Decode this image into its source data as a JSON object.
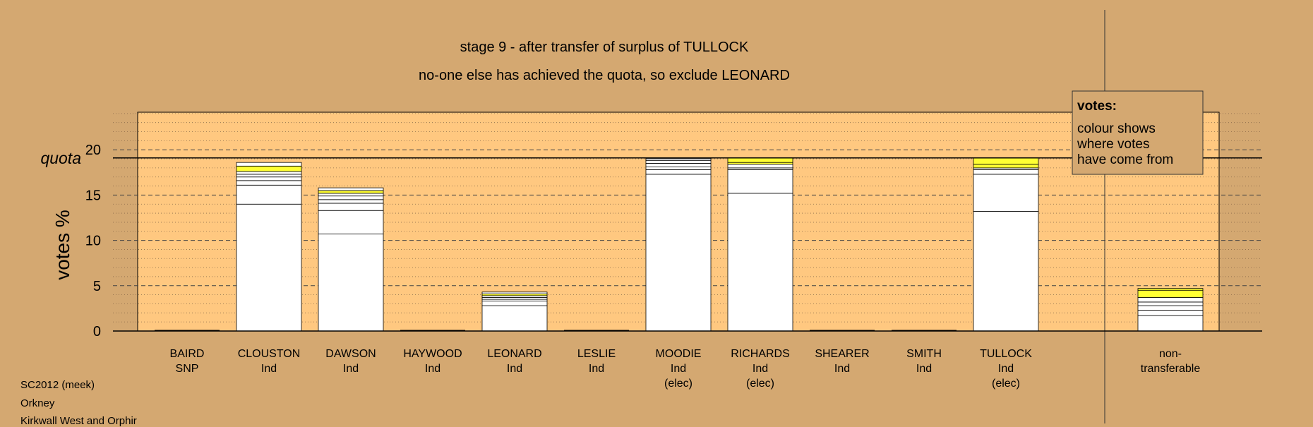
{
  "chart_data": {
    "type": "bar",
    "stacked": true,
    "title": "stage 9 - after transfer of surplus of TULLOCK",
    "subtitle": "no-one else has achieved the quota, so exclude LEONARD",
    "ylabel": "votes %",
    "ylim": [
      0,
      24
    ],
    "yticks": [
      0,
      5,
      10,
      15,
      20
    ],
    "quota": {
      "label": "quota",
      "value": 19.1
    },
    "grid": true,
    "legend": {
      "title": "votes:",
      "lines": [
        "colour shows",
        "where votes",
        "have come from"
      ],
      "position": "top-right"
    },
    "categories": [
      {
        "name": "BAIRD",
        "party": "SNP",
        "note": ""
      },
      {
        "name": "CLOUSTON",
        "party": "Ind",
        "note": ""
      },
      {
        "name": "DAWSON",
        "party": "Ind",
        "note": ""
      },
      {
        "name": "HAYWOOD",
        "party": "Ind",
        "note": ""
      },
      {
        "name": "LEONARD",
        "party": "Ind",
        "note": ""
      },
      {
        "name": "LESLIE",
        "party": "Ind",
        "note": ""
      },
      {
        "name": "MOODIE",
        "party": "Ind",
        "note": "(elec)"
      },
      {
        "name": "RICHARDS",
        "party": "Ind",
        "note": "(elec)"
      },
      {
        "name": "SHEARER",
        "party": "Ind",
        "note": ""
      },
      {
        "name": "SMITH",
        "party": "Ind",
        "note": ""
      },
      {
        "name": "TULLOCK",
        "party": "Ind",
        "note": "(elec)"
      },
      {
        "name": "non-",
        "party": "transferable",
        "note": ""
      }
    ],
    "stacks": [
      [
        0
      ],
      [
        14.0,
        2.1,
        0.5,
        0.4,
        0.3,
        0.3,
        0.6,
        0.4
      ],
      [
        10.7,
        2.6,
        0.8,
        0.4,
        0.4,
        0.3,
        0.3,
        0.3
      ],
      [
        0
      ],
      [
        2.8,
        0.5,
        0.2,
        0.2,
        0.2,
        0.2,
        0.2
      ],
      [
        0
      ],
      [
        17.3,
        0.5,
        0.3,
        0.4,
        0.3,
        0.2,
        0.1
      ],
      [
        15.2,
        2.6,
        0.2,
        0.4,
        0.2,
        0.5
      ],
      [
        0
      ],
      [
        0
      ],
      [
        13.2,
        4.1,
        0.5,
        0.2,
        0.4,
        0.7
      ],
      [
        1.7,
        0.6,
        0.5,
        0.4,
        0.5,
        0.8,
        0.2
      ]
    ],
    "colors": {
      "background": "#d4a871",
      "plot_area": "#ffc880",
      "bar_fill": "#ffffff",
      "transfer_fill": "#ffff33",
      "quota_line": "#000000"
    }
  },
  "footer": {
    "lines": [
      "SC2012 (meek)",
      "Orkney",
      "Kirkwall West and Orphir"
    ]
  }
}
